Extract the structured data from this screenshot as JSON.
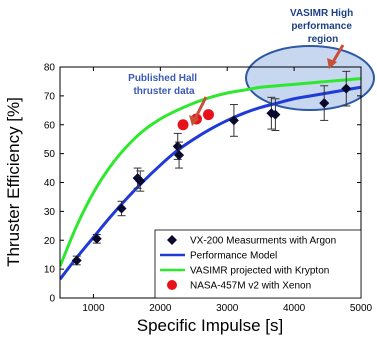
{
  "chart_data": {
    "type": "scatter",
    "title": "",
    "xlabel": "Specific Impulse [s]",
    "ylabel": "Thruster Efficiency [%]",
    "xlim": [
      500,
      5000
    ],
    "ylim": [
      0,
      80
    ],
    "xticks": [
      "1000",
      "2000",
      "3000",
      "4000",
      "5000"
    ],
    "yticks": [
      "0",
      "10",
      "20",
      "30",
      "40",
      "50",
      "60",
      "70",
      "80"
    ],
    "grid": false,
    "legend_position": "bottom-right",
    "series": [
      {
        "name": "VX-200 Measurments with Argon",
        "kind": "markers",
        "marker": "diamond",
        "color": "#0a0a2e",
        "points": [
          {
            "x": 750,
            "y": 13,
            "err": 1.5
          },
          {
            "x": 1050,
            "y": 20.5,
            "err": 1.5
          },
          {
            "x": 1420,
            "y": 31,
            "err": 2.5
          },
          {
            "x": 1660,
            "y": 41.5,
            "err": 3.5
          },
          {
            "x": 1700,
            "y": 40.5,
            "err": 3.5
          },
          {
            "x": 2260,
            "y": 52.5,
            "err": 4.5
          },
          {
            "x": 2280,
            "y": 49.5,
            "err": 4.5
          },
          {
            "x": 3100,
            "y": 61.5,
            "err": 5.5
          },
          {
            "x": 3660,
            "y": 64,
            "err": 5.5
          },
          {
            "x": 3720,
            "y": 63.5,
            "err": 5.5
          },
          {
            "x": 4450,
            "y": 67.5,
            "err": 6
          },
          {
            "x": 4780,
            "y": 72.5,
            "err": 6
          }
        ]
      },
      {
        "name": "Performance Model",
        "kind": "line",
        "color": "#1f3ad6",
        "x": [
          500,
          750,
          1000,
          1250,
          1500,
          1750,
          2000,
          2250,
          2500,
          2750,
          3000,
          3250,
          3500,
          3750,
          4000,
          4250,
          4500,
          4750,
          5000
        ],
        "y": [
          6.5,
          14,
          21,
          28,
          34.5,
          40.5,
          46,
          51,
          55,
          58.5,
          61.5,
          64,
          66,
          67.5,
          69,
          70,
          71,
          72,
          73
        ]
      },
      {
        "name": "VASIMR projected with Krypton",
        "kind": "line",
        "color": "#2ee82e",
        "x": [
          500,
          750,
          1000,
          1250,
          1500,
          1750,
          2000,
          2250,
          2500,
          2750,
          3000,
          3250,
          3500,
          3750,
          4000,
          4250,
          4500,
          4750,
          5000
        ],
        "y": [
          11,
          25,
          36.5,
          45.5,
          52.5,
          58,
          62,
          65,
          67.5,
          69.5,
          71,
          72,
          73,
          73.5,
          74,
          74.5,
          75,
          75.5,
          76
        ]
      },
      {
        "name": "NASA-457M v2 with Xenon",
        "kind": "markers",
        "marker": "circle",
        "color": "#e8121b",
        "points": [
          {
            "x": 2340,
            "y": 60
          },
          {
            "x": 2540,
            "y": 62
          },
          {
            "x": 2720,
            "y": 63.5
          }
        ]
      }
    ],
    "annotations": [
      {
        "text_lines": [
          "Published Hall",
          "thruster data"
        ],
        "color": "#3a5bb5"
      },
      {
        "text_lines": [
          "VASIMR High",
          "performance",
          "region"
        ],
        "color": "#1c3f86"
      }
    ]
  }
}
